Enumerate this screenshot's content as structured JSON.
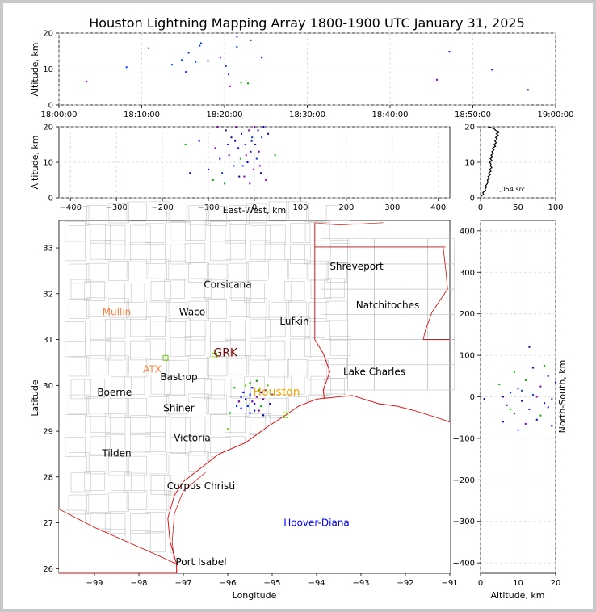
{
  "title": "Houston Lightning Mapping Array 1800-1900 UTC January 31, 2025",
  "chart_data": [
    {
      "id": "time-altitude",
      "type": "scatter",
      "ylabel": "Altitude, km",
      "ylim": [
        0,
        20
      ],
      "yticks": [
        0,
        10,
        20
      ],
      "x_ticklabels": [
        "18:00:00",
        "18:10:00",
        "18:20:00",
        "18:30:00",
        "18:40:00",
        "18:50:00",
        "19:00:00"
      ],
      "points": [
        {
          "t": "18:03:20",
          "alt": 6.5,
          "color": "#7700aa"
        },
        {
          "t": "18:08:10",
          "alt": 10.5,
          "color": "#0033ff"
        },
        {
          "t": "18:10:50",
          "alt": 15.8,
          "color": "#0033ff"
        },
        {
          "t": "18:13:40",
          "alt": 11.2,
          "color": "#0033ff"
        },
        {
          "t": "18:14:50",
          "alt": 12.5,
          "color": "#0033ff"
        },
        {
          "t": "18:15:20",
          "alt": 9.2,
          "color": "#0033ff"
        },
        {
          "t": "18:15:40",
          "alt": 14.5,
          "color": "#0033ff"
        },
        {
          "t": "18:16:30",
          "alt": 12.0,
          "color": "#0033ff"
        },
        {
          "t": "18:17:00",
          "alt": 16.5,
          "color": "#0033ff"
        },
        {
          "t": "18:17:10",
          "alt": 17.2,
          "color": "#0033ff"
        },
        {
          "t": "18:18:00",
          "alt": 12.3,
          "color": "#0033ff"
        },
        {
          "t": "18:19:30",
          "alt": 13.2,
          "color": "#7700aa"
        },
        {
          "t": "18:20:10",
          "alt": 10.8,
          "color": "#0033ff"
        },
        {
          "t": "18:20:30",
          "alt": 8.5,
          "color": "#0033ff"
        },
        {
          "t": "18:20:40",
          "alt": 5.2,
          "color": "#7700aa"
        },
        {
          "t": "18:21:30",
          "alt": 16.2,
          "color": "#0033ff"
        },
        {
          "t": "18:21:30",
          "alt": 19.0,
          "color": "#0033ff"
        },
        {
          "t": "18:22:00",
          "alt": 6.3,
          "color": "#00aa00"
        },
        {
          "t": "18:22:50",
          "alt": 6.0,
          "color": "#00aa00"
        },
        {
          "t": "18:23:10",
          "alt": 18.0,
          "color": "#7700aa"
        },
        {
          "t": "18:24:30",
          "alt": 13.2,
          "color": "#0000cc"
        },
        {
          "t": "18:45:40",
          "alt": 7.0,
          "color": "#7700aa"
        },
        {
          "t": "18:47:10",
          "alt": 14.8,
          "color": "#0000cc"
        },
        {
          "t": "18:52:20",
          "alt": 9.8,
          "color": "#0000cc"
        },
        {
          "t": "18:56:40",
          "alt": 4.2,
          "color": "#0000cc"
        }
      ]
    },
    {
      "id": "ew-altitude",
      "type": "scatter",
      "ylabel": "Altitude, km",
      "xlabel": "East-West, km",
      "xlim": [
        -425,
        425
      ],
      "ylim": [
        0,
        20
      ],
      "xticks": [
        -400,
        -300,
        -200,
        -100,
        0,
        100,
        200,
        300,
        400
      ],
      "yticks": [
        0,
        10,
        20
      ],
      "points": [
        [
          -150,
          15,
          "#00aa00"
        ],
        [
          -120,
          16,
          "#0000cc"
        ],
        [
          -100,
          8,
          "#0000cc"
        ],
        [
          -85,
          14,
          "#7700aa"
        ],
        [
          -75,
          11,
          "#0000cc"
        ],
        [
          -70,
          7,
          "#0033ff"
        ],
        [
          -62,
          19,
          "#0000cc"
        ],
        [
          -55,
          12,
          "#7700aa"
        ],
        [
          -50,
          17,
          "#0000cc"
        ],
        [
          -45,
          9,
          "#0033ff"
        ],
        [
          -40,
          20,
          "#7700aa"
        ],
        [
          -35,
          14,
          "#0000cc"
        ],
        [
          -30,
          11,
          "#00aa00"
        ],
        [
          -28,
          18,
          "#0000cc"
        ],
        [
          -22,
          6,
          "#7700aa"
        ],
        [
          -20,
          15,
          "#0033ff"
        ],
        [
          -15,
          10,
          "#0000cc"
        ],
        [
          -12,
          19,
          "#7700aa"
        ],
        [
          -8,
          13,
          "#0000cc"
        ],
        [
          -5,
          17,
          "#0033ff"
        ],
        [
          -2,
          8,
          "#aa00aa"
        ],
        [
          2,
          15,
          "#0000cc"
        ],
        [
          5,
          11,
          "#0033ff"
        ],
        [
          8,
          19,
          "#0000cc"
        ],
        [
          10,
          13,
          "#7700aa"
        ],
        [
          14,
          7,
          "#0000cc"
        ],
        [
          16,
          17,
          "#0033ff"
        ],
        [
          20,
          20,
          "#0000cc"
        ],
        [
          -90,
          5,
          "#00aa00"
        ],
        [
          -65,
          4,
          "#00aa00"
        ],
        [
          -10,
          4,
          "#7700aa"
        ],
        [
          25,
          5,
          "#aa00aa"
        ],
        [
          45,
          12,
          "#00aa00"
        ],
        [
          -140,
          7,
          "#0000cc"
        ],
        [
          -80,
          20,
          "#7700aa"
        ],
        [
          -42,
          16,
          "#0000cc"
        ],
        [
          -25,
          9,
          "#0033ff"
        ],
        [
          -18,
          12,
          "#aa00aa"
        ],
        [
          0,
          20,
          "#7700aa"
        ],
        [
          30,
          18,
          "#0000cc"
        ],
        [
          -58,
          15,
          "#0033ff"
        ],
        [
          -33,
          6,
          "#0000cc"
        ],
        [
          -6,
          16,
          "#0000cc"
        ],
        [
          12,
          9,
          "#7700aa"
        ]
      ]
    },
    {
      "id": "altitude-histogram",
      "type": "line",
      "xlim": [
        0,
        100
      ],
      "ylim": [
        0,
        20
      ],
      "xticks": [
        0,
        50,
        100
      ],
      "yticks": [
        0,
        10,
        20
      ],
      "annotation": "1,054 src",
      "profile": [
        [
          0,
          0
        ],
        [
          1,
          0.5
        ],
        [
          4,
          1.0
        ],
        [
          3,
          1.5
        ],
        [
          7,
          2.0
        ],
        [
          6,
          2.5
        ],
        [
          8,
          3.0
        ],
        [
          7,
          3.5
        ],
        [
          9,
          4.0
        ],
        [
          10,
          4.5
        ],
        [
          9,
          5.0
        ],
        [
          12,
          5.5
        ],
        [
          10,
          6.0
        ],
        [
          13,
          6.5
        ],
        [
          11,
          7.0
        ],
        [
          14,
          7.5
        ],
        [
          12,
          8.0
        ],
        [
          15,
          8.5
        ],
        [
          13,
          9.0
        ],
        [
          14,
          9.5
        ],
        [
          12,
          10.0
        ],
        [
          15,
          10.5
        ],
        [
          13,
          11.0
        ],
        [
          16,
          11.5
        ],
        [
          14,
          12.0
        ],
        [
          17,
          12.5
        ],
        [
          15,
          13.0
        ],
        [
          18,
          13.5
        ],
        [
          16,
          14.0
        ],
        [
          20,
          14.5
        ],
        [
          18,
          15.0
        ],
        [
          21,
          15.5
        ],
        [
          19,
          16.0
        ],
        [
          22,
          16.5
        ],
        [
          20,
          17.0
        ],
        [
          24,
          17.5
        ],
        [
          21,
          18.0
        ],
        [
          25,
          18.5
        ],
        [
          20,
          19.0
        ],
        [
          18,
          19.5
        ],
        [
          10,
          20.0
        ]
      ]
    },
    {
      "id": "plan-view-map",
      "type": "scatter",
      "xlabel": "Longitude",
      "ylabel": "Latitude",
      "xlim": [
        -99.8,
        -91.0
      ],
      "ylim": [
        25.9,
        33.6
      ],
      "xticks": [
        -99,
        -98,
        -97,
        -96,
        -95,
        -94,
        -93,
        -92,
        -91
      ],
      "yticks": [
        26,
        27,
        28,
        29,
        30,
        31,
        32,
        33
      ],
      "cities": [
        {
          "name": "Shreveport",
          "lon": -93.1,
          "lat": 32.6,
          "color": "#000000"
        },
        {
          "name": "Corsicana",
          "lon": -96.0,
          "lat": 32.2,
          "color": "#000000"
        },
        {
          "name": "Natchitoches",
          "lon": -92.4,
          "lat": 31.75,
          "color": "#000000"
        },
        {
          "name": "Mullin",
          "lon": -98.5,
          "lat": 31.6,
          "color": "#ff8040"
        },
        {
          "name": "Waco",
          "lon": -96.8,
          "lat": 31.6,
          "color": "#000000"
        },
        {
          "name": "Lufkin",
          "lon": -94.5,
          "lat": 31.4,
          "color": "#000000"
        },
        {
          "name": "GRK",
          "lon": -96.05,
          "lat": 30.7,
          "color": "#800000"
        },
        {
          "name": "ATX",
          "lon": -97.7,
          "lat": 30.35,
          "color": "#ff8040"
        },
        {
          "name": "Bastrop",
          "lon": -97.1,
          "lat": 30.18,
          "color": "#000000"
        },
        {
          "name": "Lake Charles",
          "lon": -92.7,
          "lat": 30.3,
          "color": "#000000"
        },
        {
          "name": "Boerne",
          "lon": -98.55,
          "lat": 29.85,
          "color": "#000000"
        },
        {
          "name": "Houston",
          "lon": -94.9,
          "lat": 29.85,
          "color": "#ffa500"
        },
        {
          "name": "Shiner",
          "lon": -97.1,
          "lat": 29.5,
          "color": "#000000"
        },
        {
          "name": "Victoria",
          "lon": -96.8,
          "lat": 28.85,
          "color": "#000000"
        },
        {
          "name": "Tilden",
          "lon": -98.5,
          "lat": 28.52,
          "color": "#000000"
        },
        {
          "name": "Corpus Christi",
          "lon": -96.6,
          "lat": 27.8,
          "color": "#000000"
        },
        {
          "name": "Hoover-Diana",
          "lon": -94.0,
          "lat": 27.0,
          "color": "#0000ff"
        },
        {
          "name": "Port Isabel",
          "lon": -96.6,
          "lat": 26.15,
          "color": "#000000"
        }
      ],
      "stations": [
        {
          "lon": -97.4,
          "lat": 30.6,
          "color": "#66cc00"
        },
        {
          "lon": -96.3,
          "lat": 30.65,
          "color": "#66cc00"
        },
        {
          "lon": -94.7,
          "lat": 29.35,
          "color": "#66cc00"
        }
      ],
      "points": [
        [
          -95.6,
          29.7,
          "#0000cc"
        ],
        [
          -95.5,
          29.8,
          "#0033ff"
        ],
        [
          -95.4,
          29.6,
          "#0000cc"
        ],
        [
          -95.3,
          29.9,
          "#00aa00"
        ],
        [
          -95.7,
          29.5,
          "#0000cc"
        ],
        [
          -95.2,
          29.7,
          "#7700aa"
        ],
        [
          -95.45,
          29.95,
          "#0000cc"
        ],
        [
          -95.55,
          29.55,
          "#0033ff"
        ],
        [
          -95.35,
          29.75,
          "#aa00aa"
        ],
        [
          -95.65,
          29.85,
          "#0000cc"
        ],
        [
          -95.25,
          29.55,
          "#00aa00"
        ],
        [
          -95.15,
          29.9,
          "#0000cc"
        ],
        [
          -95.75,
          29.65,
          "#7700aa"
        ],
        [
          -95.5,
          30.05,
          "#00aa00"
        ],
        [
          -95.0,
          29.8,
          "#0033ff"
        ],
        [
          -95.85,
          29.95,
          "#00aa00"
        ],
        [
          -95.4,
          29.45,
          "#0000cc"
        ],
        [
          -95.6,
          30.0,
          "#66cc00"
        ],
        [
          -95.3,
          29.45,
          "#7700aa"
        ],
        [
          -95.1,
          30.0,
          "#66cc00"
        ],
        [
          -95.95,
          29.4,
          "#00aa00"
        ],
        [
          -95.2,
          29.35,
          "#0000cc"
        ],
        [
          -95.5,
          29.4,
          "#0033ff"
        ],
        [
          -95.7,
          29.75,
          "#0000cc"
        ],
        [
          -95.45,
          29.65,
          "#7700aa"
        ],
        [
          -95.05,
          29.6,
          "#0000cc"
        ],
        [
          -95.8,
          29.55,
          "#0033ff"
        ],
        [
          -96.0,
          29.05,
          "#66cc00"
        ],
        [
          -95.35,
          30.1,
          "#00aa00"
        ],
        [
          -95.25,
          29.85,
          "#0000cc"
        ]
      ]
    },
    {
      "id": "altitude-ns",
      "type": "scatter",
      "xlabel": "Altitude, km",
      "ylabel": "North-South, km",
      "xlim": [
        0,
        20
      ],
      "ylim": [
        -425,
        425
      ],
      "xticks": [
        0,
        10,
        20
      ],
      "yticks": [
        -400,
        -300,
        -200,
        -100,
        0,
        100,
        200,
        300,
        400
      ],
      "points": [
        [
          5,
          30,
          "#00aa00"
        ],
        [
          6,
          0,
          "#0000cc"
        ],
        [
          7,
          -20,
          "#0000cc"
        ],
        [
          8,
          10,
          "#0033ff"
        ],
        [
          9,
          -40,
          "#0000cc"
        ],
        [
          10,
          20,
          "#7700aa"
        ],
        [
          11,
          -10,
          "#0000cc"
        ],
        [
          12,
          40,
          "#00aa00"
        ],
        [
          13,
          -30,
          "#0000cc"
        ],
        [
          14,
          5,
          "#0033ff"
        ],
        [
          15,
          -55,
          "#0000cc"
        ],
        [
          16,
          25,
          "#7700aa"
        ],
        [
          17,
          -15,
          "#0000cc"
        ],
        [
          18,
          50,
          "#0000cc"
        ],
        [
          19,
          -5,
          "#7700aa"
        ],
        [
          20,
          35,
          "#0000cc"
        ],
        [
          6,
          -60,
          "#0000cc"
        ],
        [
          9,
          60,
          "#00aa00"
        ],
        [
          12,
          -65,
          "#7700aa"
        ],
        [
          14,
          70,
          "#0000cc"
        ],
        [
          16,
          -45,
          "#00aa00"
        ],
        [
          18,
          -25,
          "#0000cc"
        ],
        [
          13,
          120,
          "#0000cc"
        ],
        [
          15,
          0,
          "#aa00aa"
        ],
        [
          11,
          15,
          "#0033ff"
        ],
        [
          8,
          -30,
          "#00aa00"
        ],
        [
          17,
          75,
          "#00aa00"
        ],
        [
          19,
          -70,
          "#0000cc"
        ],
        [
          1,
          -5,
          "#0000cc"
        ],
        [
          10,
          -80,
          "#0033ff"
        ]
      ]
    }
  ]
}
